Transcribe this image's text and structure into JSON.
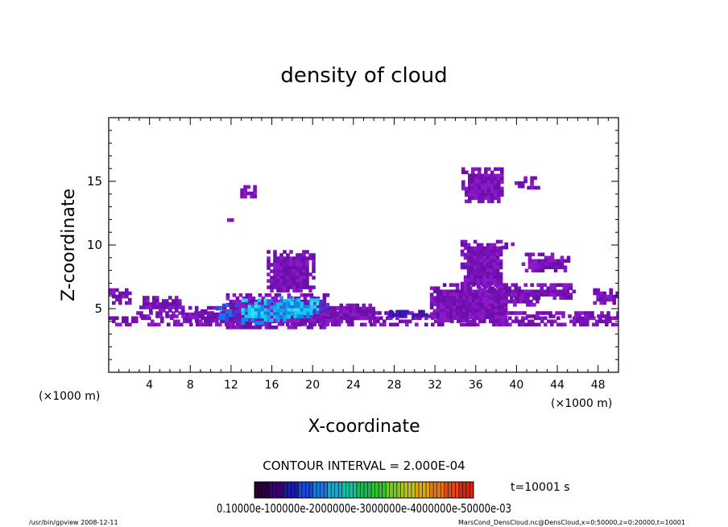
{
  "chart_data": {
    "type": "heatmap",
    "title": "density of cloud",
    "xlabel": "X-coordinate",
    "ylabel": "Z-coordinate",
    "x_unit": "(×1000 m)",
    "y_unit": "(×1000 m)",
    "xlim": [
      0,
      50
    ],
    "ylim": [
      0,
      20
    ],
    "x_ticks": [
      "4",
      "8",
      "12",
      "16",
      "20",
      "24",
      "28",
      "32",
      "36",
      "40",
      "44",
      "48"
    ],
    "y_ticks": [
      "5",
      "10",
      "15"
    ],
    "x_tick_values": [
      4,
      8,
      12,
      16,
      20,
      24,
      28,
      32,
      36,
      40,
      44,
      48
    ],
    "y_tick_values": [
      5,
      10,
      15
    ],
    "contour_interval": "CONTOUR INTERVAL = 2.000E-04",
    "time": "t=10001 s",
    "colorbar_labels": "0.10000e-100000e-2000000e-3000000e-4000000e-50000e-03",
    "colorbar_colors": [
      "#2a0038",
      "#3a0070",
      "#1a1aa8",
      "#1a48d8",
      "#1878d8",
      "#16a8c8",
      "#16c0a0",
      "#18b858",
      "#30c030",
      "#78c828",
      "#b8c020",
      "#d8a818",
      "#e07818",
      "#e04818",
      "#d02818"
    ],
    "cloud_regions": [
      {
        "x": [
          0,
          50
        ],
        "z": [
          3.8,
          4.4
        ],
        "level": 1
      },
      {
        "x": [
          2.7,
          50
        ],
        "z": [
          4.3,
          4.8
        ],
        "level": 1
      },
      {
        "x": [
          0,
          2.0
        ],
        "z": [
          5.5,
          6.6
        ],
        "level": 1
      },
      {
        "x": [
          3.0,
          7.2
        ],
        "z": [
          4.8,
          6.0
        ],
        "level": 1
      },
      {
        "x": [
          7.5,
          8.6
        ],
        "z": [
          4.0,
          5.2
        ],
        "level": 1
      },
      {
        "x": [
          9.0,
          24.0
        ],
        "z": [
          4.0,
          5.2
        ],
        "level": 1
      },
      {
        "x": [
          11.5,
          21.5
        ],
        "z": [
          3.6,
          6.2
        ],
        "level": 1
      },
      {
        "x": [
          15.5,
          20.0
        ],
        "z": [
          6.4,
          9.6
        ],
        "level": 1
      },
      {
        "x": [
          22.0,
          26.0
        ],
        "z": [
          4.0,
          5.4
        ],
        "level": 1
      },
      {
        "x": [
          31.5,
          39.0
        ],
        "z": [
          4.0,
          7.0
        ],
        "level": 1
      },
      {
        "x": [
          36.5,
          42.0
        ],
        "z": [
          5.2,
          6.2
        ],
        "level": 1
      },
      {
        "x": [
          38.5,
          45.5
        ],
        "z": [
          5.8,
          7.0
        ],
        "level": 1
      },
      {
        "x": [
          47.5,
          50.0
        ],
        "z": [
          5.5,
          6.6
        ],
        "level": 1
      },
      {
        "x": [
          40.5,
          45.0
        ],
        "z": [
          8.0,
          9.4
        ],
        "level": 1
      },
      {
        "x": [
          34.5,
          38.5
        ],
        "z": [
          6.6,
          10.4
        ],
        "level": 1
      },
      {
        "x": [
          38.5,
          39.5
        ],
        "z": [
          9.8,
          10.2
        ],
        "level": 1
      },
      {
        "x": [
          34.6,
          38.6
        ],
        "z": [
          13.4,
          16.1
        ],
        "level": 1
      },
      {
        "x": [
          39.8,
          40.6
        ],
        "z": [
          14.7,
          15.0
        ],
        "level": 1
      },
      {
        "x": [
          40.7,
          42.1
        ],
        "z": [
          14.6,
          15.4
        ],
        "level": 1
      },
      {
        "x": [
          12.9,
          14.3
        ],
        "z": [
          13.7,
          14.7
        ],
        "level": 1
      },
      {
        "x": [
          11.6,
          12.4
        ],
        "z": [
          11.7,
          12.1
        ],
        "level": 1
      },
      {
        "x": [
          10.5,
          13.0
        ],
        "z": [
          4.2,
          5.4
        ],
        "level": 3
      },
      {
        "x": [
          13.0,
          15.5
        ],
        "z": [
          4.0,
          5.8
        ],
        "level": 5
      },
      {
        "x": [
          15.5,
          18.0
        ],
        "z": [
          4.0,
          6.0
        ],
        "level": 4
      },
      {
        "x": [
          17.5,
          20.5
        ],
        "z": [
          4.4,
          5.8
        ],
        "level": 5
      },
      {
        "x": [
          20.0,
          21.5
        ],
        "z": [
          4.6,
          5.6
        ],
        "level": 3
      },
      {
        "x": [
          27.5,
          31.0
        ],
        "z": [
          4.6,
          4.9
        ],
        "level": 2
      }
    ]
  },
  "footer": {
    "left": "/usr/bin/gpview   2008-12-11",
    "right": "MarsCond_DensCloud.nc@DensCloud,x=0:50000,z=0:20000,t=10001"
  }
}
